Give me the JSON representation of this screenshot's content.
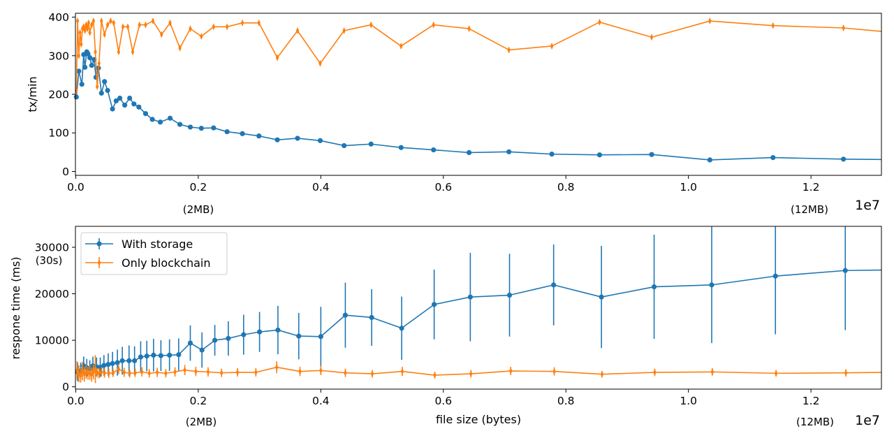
{
  "chart_data": [
    {
      "type": "line",
      "title": "",
      "ylabel": "tx/min",
      "xlabel": "",
      "xlim": [
        -5000,
        13150000
      ],
      "ylim": [
        -10,
        410
      ],
      "x_ticks": [
        0,
        2000000,
        4000000,
        6000000,
        8000000,
        10000000,
        12000000
      ],
      "x_tick_labels": [
        "0.0",
        "0.2",
        "0.4",
        "0.6",
        "0.8",
        "1.0",
        "1.2"
      ],
      "y_ticks": [
        0,
        100,
        200,
        300,
        400
      ],
      "y_tick_labels": [
        "0",
        "100",
        "200",
        "300",
        "400"
      ],
      "offset_label": "1e7",
      "annotations": [
        {
          "text": "(2MB)",
          "x": 2000000
        },
        {
          "text": "(12MB)",
          "x": 12000000
        }
      ],
      "series": [
        {
          "name": "With storage",
          "color": "#1f77b4",
          "marker": "circle",
          "x": [
            10000,
            50000,
            100000,
            130000,
            150000,
            180000,
            200000,
            230000,
            260000,
            300000,
            330000,
            370000,
            420000,
            470000,
            520000,
            600000,
            660000,
            720000,
            800000,
            880000,
            950000,
            1030000,
            1140000,
            1250000,
            1380000,
            1540000,
            1700000,
            1870000,
            2050000,
            2250000,
            2470000,
            2720000,
            2990000,
            3290000,
            3620000,
            3990000,
            4380000,
            4820000,
            5310000,
            5840000,
            6420000,
            7070000,
            7770000,
            8550000,
            9400000,
            10350000,
            11380000,
            12530000,
            13150000
          ],
          "values": [
            193,
            260,
            226,
            303,
            270,
            310,
            305,
            295,
            275,
            290,
            244,
            268,
            203,
            233,
            210,
            162,
            183,
            190,
            172,
            190,
            175,
            167,
            150,
            135,
            128,
            138,
            122,
            115,
            112,
            113,
            103,
            98,
            92,
            82,
            86,
            80,
            67,
            71,
            62,
            56,
            49,
            51,
            45,
            43,
            44,
            30,
            36,
            32,
            31
          ]
        },
        {
          "name": "Only blockchain",
          "color": "#ff7f0e",
          "marker": "thin_diamond",
          "x": [
            10000,
            30000,
            50000,
            70000,
            90000,
            110000,
            130000,
            150000,
            170000,
            190000,
            210000,
            230000,
            260000,
            290000,
            320000,
            350000,
            380000,
            420000,
            470000,
            520000,
            570000,
            620000,
            700000,
            770000,
            850000,
            930000,
            1040000,
            1140000,
            1260000,
            1400000,
            1540000,
            1700000,
            1870000,
            2050000,
            2250000,
            2470000,
            2720000,
            2990000,
            3290000,
            3620000,
            3990000,
            4380000,
            4820000,
            5310000,
            5840000,
            6420000,
            7070000,
            7770000,
            8550000,
            9400000,
            10350000,
            11380000,
            12530000,
            13150000
          ],
          "values": [
            210,
            390,
            300,
            360,
            330,
            370,
            375,
            365,
            380,
            370,
            385,
            360,
            380,
            390,
            310,
            220,
            280,
            390,
            355,
            380,
            390,
            385,
            310,
            375,
            375,
            310,
            380,
            380,
            390,
            355,
            385,
            320,
            370,
            350,
            375,
            375,
            385,
            385,
            295,
            365,
            280,
            365,
            380,
            325,
            380,
            370,
            315,
            325,
            387,
            348,
            390,
            378,
            372,
            363
          ]
        }
      ]
    },
    {
      "type": "line",
      "title": "",
      "ylabel": "respone time (ms)",
      "xlabel": "file size (bytes)",
      "xlim": [
        -5000,
        13150000
      ],
      "ylim": [
        -500,
        34500
      ],
      "x_ticks": [
        0,
        2000000,
        4000000,
        6000000,
        8000000,
        10000000,
        12000000
      ],
      "x_tick_labels": [
        "0.0",
        "0.2",
        "0.4",
        "0.6",
        "0.8",
        "1.0",
        "1.2"
      ],
      "y_ticks": [
        0,
        10000,
        20000,
        30000
      ],
      "y_tick_labels": [
        "0",
        "10000",
        "20000",
        "30000"
      ],
      "offset_label": "1e7",
      "annotations": [
        {
          "text": "(2MB)",
          "x": 2000000
        },
        {
          "text": "(12MB)",
          "x": 12000000
        },
        {
          "text": "(30s)",
          "y": 30000
        }
      ],
      "legend": {
        "position": "top-left",
        "entries": [
          "With storage",
          "Only blockchain"
        ]
      },
      "series": [
        {
          "name": "With storage",
          "color": "#1f77b4",
          "marker": "circle",
          "x": [
            30000,
            80000,
            130000,
            180000,
            230000,
            280000,
            340000,
            400000,
            460000,
            530000,
            600000,
            680000,
            760000,
            870000,
            960000,
            1060000,
            1160000,
            1270000,
            1390000,
            1530000,
            1680000,
            1870000,
            2060000,
            2270000,
            2490000,
            2740000,
            3000000,
            3300000,
            3640000,
            4000000,
            4400000,
            4830000,
            5320000,
            5850000,
            6440000,
            7080000,
            7800000,
            8580000,
            9440000,
            10380000,
            11420000,
            12560000,
            13150000
          ],
          "values": [
            3200,
            3400,
            4500,
            4100,
            3900,
            4500,
            4300,
            4200,
            4600,
            4800,
            5000,
            5200,
            5600,
            5600,
            5600,
            6400,
            6600,
            6800,
            6700,
            6800,
            6900,
            9400,
            7900,
            10000,
            10400,
            11200,
            11800,
            12200,
            10900,
            10800,
            15400,
            14900,
            12600,
            17700,
            19300,
            19700,
            21900,
            19300,
            21500,
            21900,
            23800,
            25000,
            25100
          ],
          "errors": [
            2000,
            1800,
            2000,
            1900,
            1800,
            2000,
            2000,
            2100,
            2200,
            2400,
            2500,
            2800,
            3000,
            3300,
            3100,
            3400,
            3300,
            3500,
            3300,
            3400,
            3500,
            3800,
            3800,
            3300,
            3700,
            4300,
            4300,
            5200,
            5000,
            6400,
            7000,
            6100,
            6800,
            7500,
            9500,
            8900,
            8700,
            11000,
            11200,
            12500,
            12500,
            12800,
            0
          ]
        },
        {
          "name": "Only blockchain",
          "color": "#ff7f0e",
          "marker": "thin_diamond",
          "x": [
            20000,
            50000,
            80000,
            110000,
            140000,
            170000,
            200000,
            230000,
            260000,
            290000,
            320000,
            350000,
            380000,
            420000,
            470000,
            540000,
            610000,
            700000,
            790000,
            880000,
            970000,
            1080000,
            1200000,
            1330000,
            1470000,
            1620000,
            1780000,
            1960000,
            2160000,
            2380000,
            2640000,
            2940000,
            3280000,
            3660000,
            4000000,
            4400000,
            4840000,
            5330000,
            5860000,
            6450000,
            7100000,
            7810000,
            8590000,
            9450000,
            10390000,
            11430000,
            12570000,
            13150000
          ],
          "values": [
            3500,
            2800,
            2400,
            3400,
            2700,
            3200,
            2900,
            3000,
            2600,
            3200,
            3800,
            3000,
            2900,
            3200,
            3000,
            2900,
            3000,
            3800,
            3100,
            2900,
            3000,
            3200,
            2900,
            3100,
            2900,
            3200,
            3600,
            3300,
            3200,
            3000,
            3100,
            3100,
            4200,
            3300,
            3500,
            3000,
            2800,
            3300,
            2500,
            2800,
            3400,
            3300,
            2700,
            3100,
            3200,
            2900,
            3000,
            3100
          ],
          "errors": [
            2000,
            1800,
            1500,
            2000,
            1600,
            1500,
            1400,
            1500,
            1500,
            1600,
            3000,
            1000,
            1100,
            1000,
            1000,
            1000,
            900,
            1100,
            1000,
            900,
            900,
            1000,
            900,
            1000,
            900,
            1000,
            1100,
            1000,
            1000,
            900,
            900,
            900,
            1300,
            1000,
            1000,
            900,
            800,
            1000,
            700,
            800,
            900,
            900,
            700,
            800,
            800,
            700,
            800,
            0
          ]
        }
      ]
    }
  ]
}
